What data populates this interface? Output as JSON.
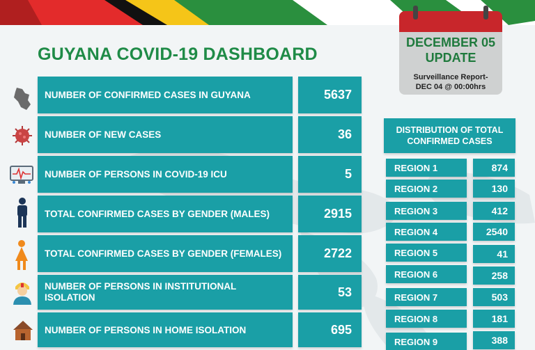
{
  "title": "GUYANA COVID-19 DASHBOARD",
  "calendar": {
    "date": "DECEMBER 05",
    "update": "UPDATE",
    "subtitle_line1": "Surveillance Report-",
    "subtitle_line2": "DEC 04 @ 00:00hrs"
  },
  "stats": [
    {
      "label": "NUMBER OF CONFIRMED CASES IN GUYANA",
      "value": "5637",
      "icon": "guyana-map-icon"
    },
    {
      "label": "NUMBER OF NEW CASES",
      "value": "36",
      "icon": "virus-icon"
    },
    {
      "label": "NUMBER OF PERSONS  IN COVID-19 ICU",
      "value": "5",
      "icon": "icu-monitor-icon"
    },
    {
      "label": "TOTAL CONFIRMED CASES BY GENDER (MALES)",
      "value": "2915",
      "icon": "male-icon"
    },
    {
      "label": "TOTAL CONFIRMED CASES BY GENDER (FEMALES)",
      "value": "2722",
      "icon": "female-icon"
    },
    {
      "label": "NUMBER OF PERSONS IN INSTITUTIONAL ISOLATION",
      "value": "53",
      "icon": "nurse-icon"
    },
    {
      "label": "NUMBER OF PERSONS IN HOME ISOLATION",
      "value": "695",
      "icon": "house-icon"
    }
  ],
  "distribution": {
    "heading_line1": "DISTRIBUTION OF TOTAL",
    "heading_line2": "CONFIRMED CASES",
    "regions": [
      {
        "label": "REGION 1",
        "value": "874"
      },
      {
        "label": "REGION 2",
        "value": "130"
      },
      {
        "label": "REGION 3",
        "value": "412"
      },
      {
        "label": "REGION 4",
        "value": "2540"
      },
      {
        "label": "REGION 5",
        "value": "41"
      },
      {
        "label": "REGION 6",
        "value": "258"
      },
      {
        "label": "REGION 7",
        "value": "503"
      },
      {
        "label": "REGION 8",
        "value": "181"
      },
      {
        "label": "REGION 9",
        "value": "388"
      }
    ]
  },
  "colors": {
    "panel": "#1a9fa6",
    "title_green": "#1f8b47",
    "calendar_red": "#c8262b",
    "calendar_grey": "#cfd1d1"
  }
}
